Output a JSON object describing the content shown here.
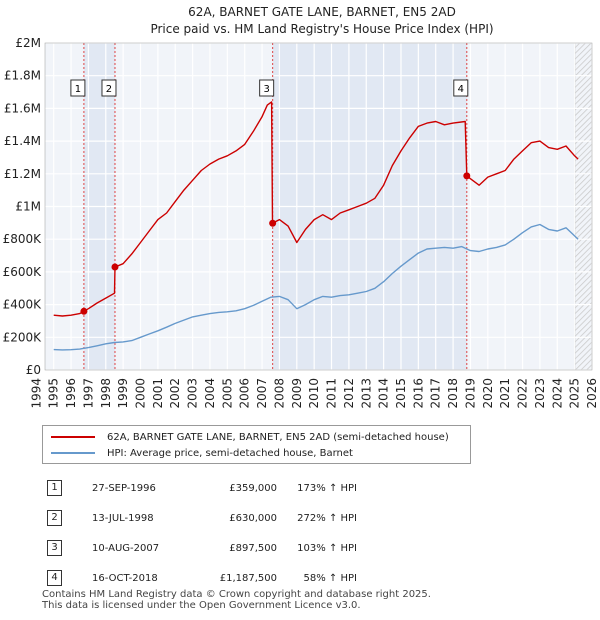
{
  "chart_data": {
    "type": "line",
    "title": "62A, BARNET GATE LANE, BARNET, EN5 2AD",
    "subtitle": "Price paid vs. HM Land Registry's House Price Index (HPI)",
    "xlabel": "",
    "ylabel": "",
    "xlim": [
      1994.5,
      2026.0
    ],
    "ylim": [
      0,
      2000000
    ],
    "x_ticks": [
      "1994",
      "1995",
      "1996",
      "1997",
      "1998",
      "1999",
      "2000",
      "2001",
      "2002",
      "2003",
      "2004",
      "2005",
      "2006",
      "2007",
      "2008",
      "2009",
      "2010",
      "2011",
      "2012",
      "2013",
      "2014",
      "2015",
      "2016",
      "2017",
      "2018",
      "2019",
      "2020",
      "2021",
      "2022",
      "2023",
      "2024",
      "2025",
      "2026"
    ],
    "y_ticks": [
      {
        "value": 0,
        "label": "£0"
      },
      {
        "value": 200000,
        "label": "£200K"
      },
      {
        "value": 400000,
        "label": "£400K"
      },
      {
        "value": 600000,
        "label": "£600K"
      },
      {
        "value": 800000,
        "label": "£800K"
      },
      {
        "value": 1000000,
        "label": "£1M"
      },
      {
        "value": 1200000,
        "label": "£1.2M"
      },
      {
        "value": 1400000,
        "label": "£1.4M"
      },
      {
        "value": 1600000,
        "label": "£1.6M"
      },
      {
        "value": 1800000,
        "label": "£1.8M"
      },
      {
        "value": 2000000,
        "label": "£2M"
      }
    ],
    "grid": true,
    "future_start": 2025.0,
    "series": [
      {
        "name": "62A, BARNET GATE LANE, BARNET, EN5 2AD (semi-detached house)",
        "color": "#cc0000",
        "points": [
          [
            1995.0,
            335000
          ],
          [
            1995.5,
            330000
          ],
          [
            1996.0,
            335000
          ],
          [
            1996.5,
            345000
          ],
          [
            1996.74,
            359000
          ],
          [
            1997.0,
            375000
          ],
          [
            1997.5,
            410000
          ],
          [
            1998.0,
            440000
          ],
          [
            1998.5,
            470000
          ],
          [
            1998.53,
            630000
          ],
          [
            1999.0,
            650000
          ],
          [
            1999.5,
            710000
          ],
          [
            2000.0,
            780000
          ],
          [
            2000.5,
            850000
          ],
          [
            2001.0,
            920000
          ],
          [
            2001.5,
            960000
          ],
          [
            2002.0,
            1030000
          ],
          [
            2002.5,
            1100000
          ],
          [
            2003.0,
            1160000
          ],
          [
            2003.5,
            1220000
          ],
          [
            2004.0,
            1260000
          ],
          [
            2004.5,
            1290000
          ],
          [
            2005.0,
            1310000
          ],
          [
            2005.5,
            1340000
          ],
          [
            2006.0,
            1380000
          ],
          [
            2006.5,
            1460000
          ],
          [
            2007.0,
            1550000
          ],
          [
            2007.3,
            1620000
          ],
          [
            2007.55,
            1640000
          ],
          [
            2007.6,
            897500
          ],
          [
            2008.0,
            920000
          ],
          [
            2008.5,
            880000
          ],
          [
            2009.0,
            780000
          ],
          [
            2009.5,
            860000
          ],
          [
            2010.0,
            920000
          ],
          [
            2010.5,
            950000
          ],
          [
            2011.0,
            920000
          ],
          [
            2011.5,
            960000
          ],
          [
            2012.0,
            980000
          ],
          [
            2012.5,
            1000000
          ],
          [
            2013.0,
            1020000
          ],
          [
            2013.5,
            1050000
          ],
          [
            2014.0,
            1130000
          ],
          [
            2014.5,
            1250000
          ],
          [
            2015.0,
            1340000
          ],
          [
            2015.5,
            1420000
          ],
          [
            2016.0,
            1490000
          ],
          [
            2016.5,
            1510000
          ],
          [
            2017.0,
            1520000
          ],
          [
            2017.5,
            1500000
          ],
          [
            2018.0,
            1510000
          ],
          [
            2018.7,
            1520000
          ],
          [
            2018.79,
            1187500
          ],
          [
            2019.0,
            1170000
          ],
          [
            2019.5,
            1130000
          ],
          [
            2020.0,
            1180000
          ],
          [
            2020.5,
            1200000
          ],
          [
            2021.0,
            1220000
          ],
          [
            2021.5,
            1290000
          ],
          [
            2022.0,
            1340000
          ],
          [
            2022.5,
            1390000
          ],
          [
            2023.0,
            1400000
          ],
          [
            2023.5,
            1360000
          ],
          [
            2024.0,
            1350000
          ],
          [
            2024.5,
            1370000
          ],
          [
            2025.0,
            1310000
          ],
          [
            2025.2,
            1290000
          ]
        ]
      },
      {
        "name": "HPI: Average price, semi-detached house, Barnet",
        "color": "#6699cc",
        "points": [
          [
            1995.0,
            125000
          ],
          [
            1995.5,
            123000
          ],
          [
            1996.0,
            124000
          ],
          [
            1996.5,
            128000
          ],
          [
            1997.0,
            137000
          ],
          [
            1997.5,
            148000
          ],
          [
            1998.0,
            160000
          ],
          [
            1998.5,
            168000
          ],
          [
            1999.0,
            172000
          ],
          [
            1999.5,
            180000
          ],
          [
            2000.0,
            200000
          ],
          [
            2000.5,
            220000
          ],
          [
            2001.0,
            240000
          ],
          [
            2001.5,
            262000
          ],
          [
            2002.0,
            285000
          ],
          [
            2002.5,
            305000
          ],
          [
            2003.0,
            325000
          ],
          [
            2003.5,
            335000
          ],
          [
            2004.0,
            345000
          ],
          [
            2004.5,
            352000
          ],
          [
            2005.0,
            356000
          ],
          [
            2005.5,
            362000
          ],
          [
            2006.0,
            375000
          ],
          [
            2006.5,
            395000
          ],
          [
            2007.0,
            420000
          ],
          [
            2007.5,
            445000
          ],
          [
            2008.0,
            450000
          ],
          [
            2008.5,
            430000
          ],
          [
            2009.0,
            375000
          ],
          [
            2009.5,
            400000
          ],
          [
            2010.0,
            430000
          ],
          [
            2010.5,
            450000
          ],
          [
            2011.0,
            445000
          ],
          [
            2011.5,
            455000
          ],
          [
            2012.0,
            460000
          ],
          [
            2012.5,
            470000
          ],
          [
            2013.0,
            480000
          ],
          [
            2013.5,
            500000
          ],
          [
            2014.0,
            540000
          ],
          [
            2014.5,
            590000
          ],
          [
            2015.0,
            635000
          ],
          [
            2015.5,
            675000
          ],
          [
            2016.0,
            715000
          ],
          [
            2016.5,
            740000
          ],
          [
            2017.0,
            745000
          ],
          [
            2017.5,
            750000
          ],
          [
            2018.0,
            745000
          ],
          [
            2018.5,
            755000
          ],
          [
            2019.0,
            730000
          ],
          [
            2019.5,
            725000
          ],
          [
            2020.0,
            740000
          ],
          [
            2020.5,
            750000
          ],
          [
            2021.0,
            765000
          ],
          [
            2021.5,
            800000
          ],
          [
            2022.0,
            840000
          ],
          [
            2022.5,
            875000
          ],
          [
            2023.0,
            890000
          ],
          [
            2023.5,
            860000
          ],
          [
            2024.0,
            850000
          ],
          [
            2024.5,
            870000
          ],
          [
            2025.0,
            820000
          ],
          [
            2025.2,
            800000
          ]
        ]
      }
    ],
    "sales": [
      {
        "label": "1",
        "x": 1996.74,
        "y": 359000
      },
      {
        "label": "2",
        "x": 1998.53,
        "y": 630000
      },
      {
        "label": "3",
        "x": 2007.61,
        "y": 897500
      },
      {
        "label": "4",
        "x": 2018.79,
        "y": 1187500
      }
    ]
  },
  "legend": {
    "property": "62A, BARNET GATE LANE, BARNET, EN5 2AD (semi-detached house)",
    "hpi": "HPI: Average price, semi-detached house, Barnet"
  },
  "transactions": [
    {
      "num": "1",
      "date": "27-SEP-1996",
      "price": "£359,000",
      "hpi": "173% ↑ HPI"
    },
    {
      "num": "2",
      "date": "13-JUL-1998",
      "price": "£630,000",
      "hpi": "272% ↑ HPI"
    },
    {
      "num": "3",
      "date": "10-AUG-2007",
      "price": "£897,500",
      "hpi": "103% ↑ HPI"
    },
    {
      "num": "4",
      "date": "16-OCT-2018",
      "price": "£1,187,500",
      "hpi": "58% ↑ HPI"
    }
  ],
  "footer": {
    "line1": "Contains HM Land Registry data © Crown copyright and database right 2025.",
    "line2": "This data is licensed under the Open Government Licence v3.0."
  }
}
